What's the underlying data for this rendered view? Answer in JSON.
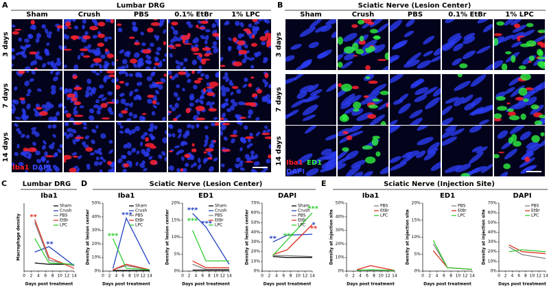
{
  "panels": {
    "A": {
      "letter": "A",
      "title": "Lumbar DRG",
      "columns": [
        "Sham",
        "Crush",
        "PBS",
        "0.1% EtBr",
        "1% LPC"
      ],
      "rows": [
        "3 days",
        "7 days",
        "14 days"
      ],
      "stain": [
        "Iba1",
        "DAPI"
      ]
    },
    "B": {
      "letter": "B",
      "title": "Sciatic Nerve (Lesion Center)",
      "columns": [
        "Sham",
        "Crush",
        "PBS",
        "0.1% EtBr",
        "1% LPC"
      ],
      "rows": [
        "3 days",
        "7 days",
        "14 days"
      ],
      "stain": [
        "Iba1",
        "ED1",
        "DAPI"
      ]
    },
    "C": {
      "letter": "C",
      "title": "Lumbar DRG"
    },
    "D": {
      "letter": "D",
      "title": "Sciatic Nerve (Lesion Center)"
    },
    "E": {
      "letter": "E",
      "title": "Sciatic Nerve (Injection Site)"
    }
  },
  "chart_data": [
    {
      "type": "line",
      "title": "Iba1",
      "xlabel": "Days post treatment",
      "ylabel": "Macrophage density",
      "xlim": [
        0,
        14
      ],
      "xticks": [
        0,
        2,
        4,
        6,
        8,
        10,
        12,
        14
      ],
      "ylim": [
        0,
        25
      ],
      "x": [
        3,
        7,
        14
      ],
      "series": [
        {
          "name": "Sham",
          "color": "#000000",
          "values": [
            3,
            2.5,
            2.5
          ]
        },
        {
          "name": "Crush",
          "color": "#1f3fbf",
          "values": [
            7,
            9,
            2
          ]
        },
        {
          "name": "PBS",
          "color": "#7f7f7f",
          "values": [
            18,
            4,
            2
          ]
        },
        {
          "name": "EtBr",
          "color": "#e03020",
          "values": [
            19,
            5,
            1
          ]
        },
        {
          "name": "LPC",
          "color": "#2ecc2e",
          "values": [
            12,
            3,
            2.5
          ]
        }
      ],
      "annotations": [
        {
          "text": "**",
          "color": "#e03020"
        },
        {
          "text": "**",
          "color": "#1f3fbf"
        }
      ]
    },
    {
      "type": "line",
      "title": "Iba1",
      "xlabel": "Days post treatment",
      "ylabel": "Density at lesion center",
      "xlim": [
        0,
        14
      ],
      "xticks": [
        0,
        2,
        4,
        6,
        8,
        10,
        12,
        14
      ],
      "ylim": [
        0,
        50
      ],
      "x": [
        3,
        7,
        14
      ],
      "yticks": [
        {
          "value": 0,
          "label": "0%"
        },
        {
          "value": 10,
          "label": "10%"
        },
        {
          "value": 20,
          "label": "20%"
        },
        {
          "value": 30,
          "label": "30%"
        },
        {
          "value": 40,
          "label": "40%"
        },
        {
          "value": 50,
          "label": "50%"
        }
      ],
      "series": [
        {
          "name": "Sham",
          "color": "#000000",
          "values": [
            0.5,
            0.5,
            0.5
          ]
        },
        {
          "name": "Crush",
          "color": "#1f3fbf",
          "values": [
            2,
            39,
            5
          ]
        },
        {
          "name": "PBS",
          "color": "#7f7f7f",
          "values": [
            1,
            4,
            1
          ]
        },
        {
          "name": "EtBr",
          "color": "#e03020",
          "values": [
            1,
            5,
            1
          ]
        },
        {
          "name": "LPC",
          "color": "#2ecc2e",
          "values": [
            24,
            2,
            1
          ]
        }
      ],
      "annotations": [
        {
          "text": "***",
          "color": "#2ecc2e"
        },
        {
          "text": "***",
          "color": "#1f3fbf"
        }
      ]
    },
    {
      "type": "line",
      "title": "ED1",
      "xlabel": "Days post treatment",
      "ylabel": "Density at lesion center",
      "xlim": [
        0,
        14
      ],
      "xticks": [
        0,
        2,
        4,
        6,
        8,
        10,
        12,
        14
      ],
      "ylim": [
        0,
        20
      ],
      "x": [
        3,
        7,
        14
      ],
      "yticks": [
        {
          "value": 0,
          "label": "0%"
        },
        {
          "value": 5,
          "label": "5%"
        },
        {
          "value": 10,
          "label": "10%"
        },
        {
          "value": 15,
          "label": "15%"
        },
        {
          "value": 20,
          "label": "20%"
        }
      ],
      "series": [
        {
          "name": "Sham",
          "color": "#000000",
          "values": [
            0.3,
            0.3,
            0.3
          ]
        },
        {
          "name": "Crush",
          "color": "#1f3fbf",
          "values": [
            17,
            13,
            2
          ]
        },
        {
          "name": "PBS",
          "color": "#7f7f7f",
          "values": [
            2,
            0.5,
            0.5
          ]
        },
        {
          "name": "EtBr",
          "color": "#e03020",
          "values": [
            3,
            1,
            1
          ]
        },
        {
          "name": "LPC",
          "color": "#2ecc2e",
          "values": [
            12,
            3,
            3
          ]
        }
      ],
      "annotations": [
        {
          "text": "***",
          "color": "#1f3fbf"
        },
        {
          "text": "***",
          "color": "#2ecc2e"
        },
        {
          "text": "***",
          "color": "#1f3fbf"
        }
      ]
    },
    {
      "type": "line",
      "title": "DAPI",
      "xlabel": "Days post treatment",
      "ylabel": "Density at lesion center",
      "xlim": [
        0,
        14
      ],
      "xticks": [
        0,
        2,
        4,
        6,
        8,
        10,
        12,
        14
      ],
      "ylim": [
        0,
        70
      ],
      "x": [
        3,
        7,
        14
      ],
      "yticks": [
        {
          "value": 0,
          "label": "0%"
        },
        {
          "value": 10,
          "label": "10%"
        },
        {
          "value": 20,
          "label": "20%"
        },
        {
          "value": 30,
          "label": "30%"
        },
        {
          "value": 40,
          "label": "40%"
        },
        {
          "value": 50,
          "label": "50%"
        },
        {
          "value": 60,
          "label": "60%"
        },
        {
          "value": 70,
          "label": "70%"
        }
      ],
      "series": [
        {
          "name": "Sham",
          "color": "#000000",
          "values": [
            15,
            14,
            14
          ]
        },
        {
          "name": "Crush",
          "color": "#1f3fbf",
          "values": [
            30,
            37,
            38
          ]
        },
        {
          "name": "PBS",
          "color": "#7f7f7f",
          "values": [
            16,
            16,
            15
          ]
        },
        {
          "name": "EtBr",
          "color": "#e03020",
          "values": [
            17,
            22,
            48
          ]
        },
        {
          "name": "LPC",
          "color": "#2ecc2e",
          "values": [
            16,
            32,
            60
          ]
        }
      ],
      "annotations": [
        {
          "text": "**",
          "color": "#1f3fbf"
        },
        {
          "text": "***",
          "color": "#2ecc2e"
        },
        {
          "text": "***",
          "color": "#2ecc2e"
        },
        {
          "text": "**",
          "color": "#e03020"
        },
        {
          "text": "*",
          "color": "#1f3fbf"
        }
      ]
    },
    {
      "type": "line",
      "title": "Iba1",
      "xlabel": "Days post treatment",
      "ylabel": "Density at injection site",
      "xlim": [
        0,
        14
      ],
      "xticks": [
        0,
        2,
        4,
        6,
        8,
        10,
        12,
        14
      ],
      "ylim": [
        0,
        50
      ],
      "x": [
        3,
        7,
        14
      ],
      "yticks": [
        {
          "value": 0,
          "label": "0%"
        },
        {
          "value": 10,
          "label": "10%"
        },
        {
          "value": 20,
          "label": "20%"
        },
        {
          "value": 30,
          "label": "30%"
        },
        {
          "value": 40,
          "label": "40%"
        },
        {
          "value": 50,
          "label": "50%"
        }
      ],
      "series": [
        {
          "name": "PBS",
          "color": "#7f7f7f",
          "values": [
            1,
            0.5,
            0.5
          ]
        },
        {
          "name": "EtBr",
          "color": "#e03020",
          "values": [
            1,
            4,
            0.5
          ]
        },
        {
          "name": "LPC",
          "color": "#2ecc2e",
          "values": [
            0.5,
            1,
            0.5
          ]
        }
      ],
      "annotations": []
    },
    {
      "type": "line",
      "title": "ED1",
      "xlabel": "Days post treatment",
      "ylabel": "Density at injection site",
      "xlim": [
        0,
        14
      ],
      "xticks": [
        0,
        2,
        4,
        6,
        8,
        10,
        12,
        14
      ],
      "ylim": [
        0,
        20
      ],
      "x": [
        3,
        7,
        14
      ],
      "yticks": [
        {
          "value": 0,
          "label": "0%"
        },
        {
          "value": 5,
          "label": "5%"
        },
        {
          "value": 10,
          "label": "10%"
        },
        {
          "value": 15,
          "label": "15%"
        },
        {
          "value": 20,
          "label": "20%"
        }
      ],
      "series": [
        {
          "name": "PBS",
          "color": "#7f7f7f",
          "values": [
            8,
            1,
            0.5
          ]
        },
        {
          "name": "EtBr",
          "color": "#e03020",
          "values": [
            6,
            1,
            0.5
          ]
        },
        {
          "name": "LPC",
          "color": "#2ecc2e",
          "values": [
            9,
            1,
            0.5
          ]
        }
      ],
      "annotations": []
    },
    {
      "type": "line",
      "title": "DAPI",
      "xlabel": "Days post treatment",
      "ylabel": "Density at injection site",
      "xlim": [
        0,
        14
      ],
      "xticks": [
        0,
        2,
        4,
        6,
        8,
        10,
        12,
        14
      ],
      "ylim": [
        0,
        70
      ],
      "x": [
        3,
        7,
        14
      ],
      "yticks": [
        {
          "value": 0,
          "label": "0%"
        },
        {
          "value": 10,
          "label": "10%"
        },
        {
          "value": 20,
          "label": "20%"
        },
        {
          "value": 30,
          "label": "30%"
        },
        {
          "value": 40,
          "label": "40%"
        },
        {
          "value": 50,
          "label": "50%"
        },
        {
          "value": 60,
          "label": "60%"
        },
        {
          "value": 70,
          "label": "70%"
        }
      ],
      "series": [
        {
          "name": "PBS",
          "color": "#7f7f7f",
          "values": [
            25,
            17,
            13
          ]
        },
        {
          "name": "EtBr",
          "color": "#e03020",
          "values": [
            27,
            20,
            18
          ]
        },
        {
          "name": "LPC",
          "color": "#2ecc2e",
          "values": [
            20,
            22,
            20
          ]
        }
      ],
      "annotations": []
    }
  ]
}
